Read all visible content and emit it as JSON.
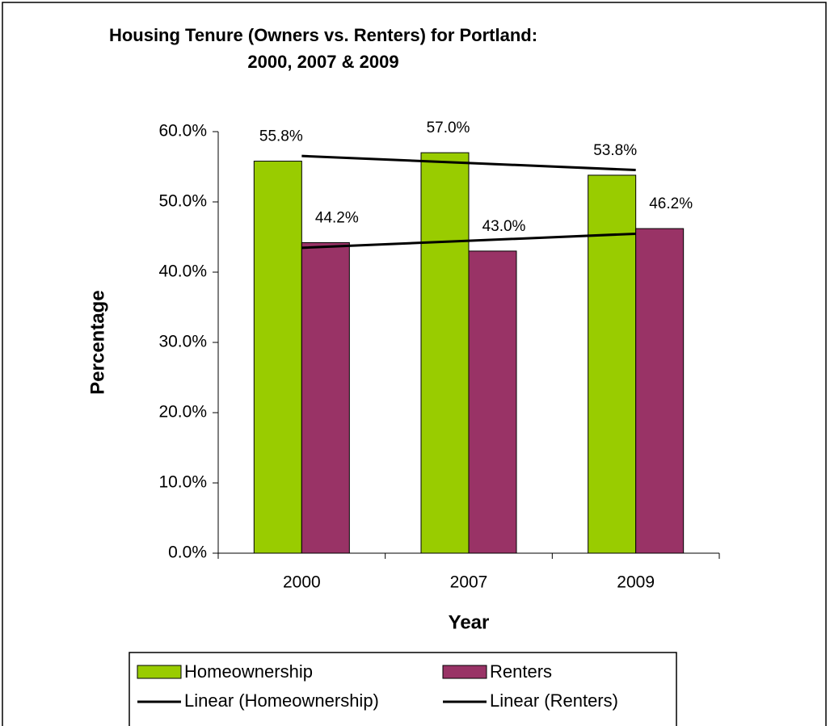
{
  "chart_data": {
    "type": "bar",
    "title": [
      "Housing Tenure (Owners vs. Renters) for Portland:",
      "2000, 2007 & 2009"
    ],
    "x_label": "Year",
    "y_label": "Percentage",
    "categories": [
      "2000",
      "2007",
      "2009"
    ],
    "series": [
      {
        "name": "Homeownership",
        "color": "#99cc00",
        "values": [
          55.8,
          57.0,
          53.8
        ],
        "value_labels": [
          "55.8%",
          "57.0%",
          "53.8%"
        ],
        "trendline": "linear",
        "trendline_name": "Linear (Homeownership)",
        "trendline_color": "#000000"
      },
      {
        "name": "Renters",
        "color": "#993366",
        "values": [
          44.2,
          43.0,
          46.2
        ],
        "value_labels": [
          "44.2%",
          "43.0%",
          "46.2%"
        ],
        "trendline": "linear",
        "trendline_name": "Linear (Renters)",
        "trendline_color": "#000000"
      }
    ],
    "ylim": [
      0,
      60
    ],
    "yticks": [
      {
        "value": 0,
        "label": "0.0%"
      },
      {
        "value": 10,
        "label": "10.0%"
      },
      {
        "value": 20,
        "label": "20.0%"
      },
      {
        "value": 30,
        "label": "30.0%"
      },
      {
        "value": 40,
        "label": "40.0%"
      },
      {
        "value": 50,
        "label": "50.0%"
      },
      {
        "value": 60,
        "label": "60.0%"
      }
    ],
    "grid": false,
    "legend": "bottom"
  }
}
